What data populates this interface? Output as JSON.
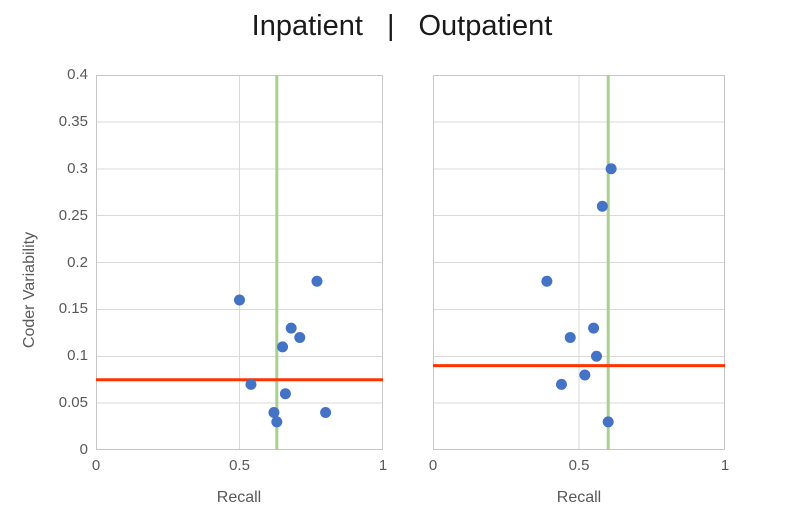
{
  "title": {
    "left": "Inpatient",
    "separator": "|",
    "right": "Outpatient"
  },
  "y_axis_title": "Coder Variability",
  "colors": {
    "dot": "#4472C4",
    "red_line": "#FF3300",
    "green_line": "#A9D18E",
    "grid": "#D9D9D9",
    "border": "#C6C6C6",
    "axis_text": "#595959",
    "title_text": "#1A1A1A"
  },
  "chart_data": [
    {
      "type": "scatter",
      "title": "Inpatient",
      "xlabel": "Recall",
      "ylabel": "Coder Variability",
      "xlim": [
        0,
        1
      ],
      "ylim": [
        0,
        0.4
      ],
      "xticks": [
        0,
        0.5,
        1
      ],
      "xtick_labels": [
        "0",
        "0.5",
        "1"
      ],
      "yticks": [
        0,
        0.05,
        0.1,
        0.15,
        0.2,
        0.25,
        0.3,
        0.35,
        0.4
      ],
      "ytick_labels": [
        "0",
        "0.05",
        "0.1",
        "0.15",
        "0.2",
        "0.25",
        "0.3",
        "0.35",
        "0.4"
      ],
      "grid": true,
      "legend": false,
      "points": [
        [
          0.5,
          0.16
        ],
        [
          0.54,
          0.07
        ],
        [
          0.62,
          0.04
        ],
        [
          0.63,
          0.03
        ],
        [
          0.65,
          0.11
        ],
        [
          0.66,
          0.06
        ],
        [
          0.68,
          0.13
        ],
        [
          0.71,
          0.12
        ],
        [
          0.77,
          0.18
        ],
        [
          0.8,
          0.04
        ]
      ],
      "red_hline_y": 0.075,
      "green_vline_x": 0.63
    },
    {
      "type": "scatter",
      "title": "Outpatient",
      "xlabel": "Recall",
      "ylabel": "Coder Variability",
      "xlim": [
        0,
        1
      ],
      "ylim": [
        0,
        0.4
      ],
      "xticks": [
        0,
        0.5,
        1
      ],
      "xtick_labels": [
        "0",
        "0.5",
        "1"
      ],
      "yticks": [
        0,
        0.05,
        0.1,
        0.15,
        0.2,
        0.25,
        0.3,
        0.35,
        0.4
      ],
      "ytick_labels": [],
      "grid": true,
      "legend": false,
      "points": [
        [
          0.39,
          0.18
        ],
        [
          0.44,
          0.07
        ],
        [
          0.47,
          0.12
        ],
        [
          0.52,
          0.08
        ],
        [
          0.55,
          0.13
        ],
        [
          0.56,
          0.1
        ],
        [
          0.58,
          0.26
        ],
        [
          0.6,
          0.03
        ],
        [
          0.61,
          0.3
        ]
      ],
      "red_hline_y": 0.09,
      "green_vline_x": 0.6
    }
  ]
}
